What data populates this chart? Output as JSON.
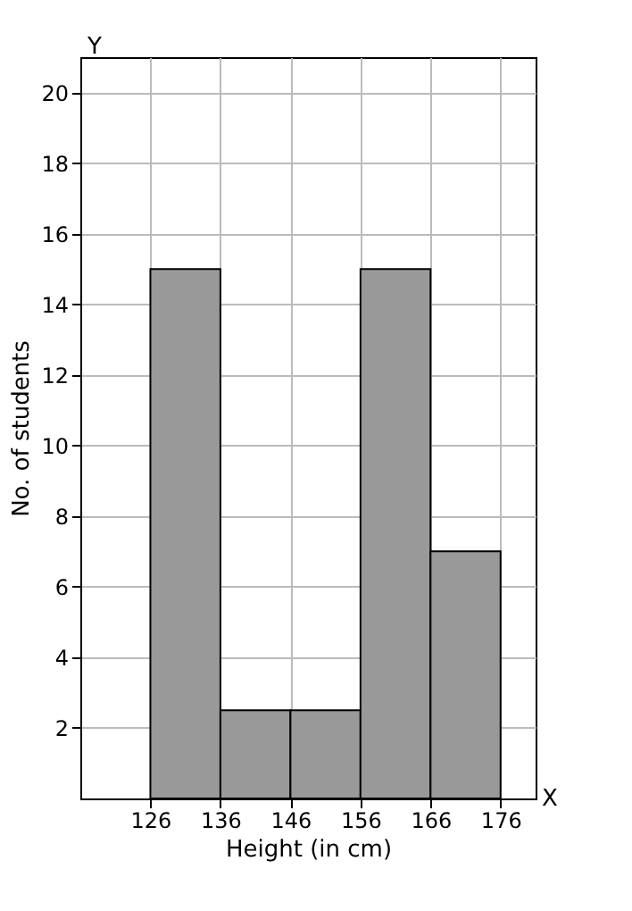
{
  "chart_data": {
    "type": "histogram",
    "bins": [
      126,
      136,
      146,
      156,
      166,
      176
    ],
    "values": [
      15,
      2.5,
      2.5,
      15,
      7
    ],
    "color": "#999999",
    "xlabel": "Height (in cm)",
    "ylabel": "No. of students",
    "xlim": [
      116,
      181
    ],
    "xticks": [
      126,
      136,
      146,
      156,
      166,
      176
    ],
    "ylim": [
      0,
      21
    ],
    "yticks": [
      2,
      4,
      6,
      8,
      10,
      12,
      14,
      16,
      18,
      20
    ],
    "annotations": [
      "Y",
      "X"
    ],
    "grid": true
  }
}
